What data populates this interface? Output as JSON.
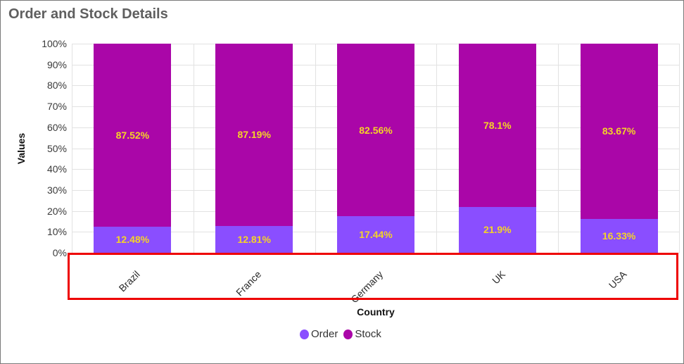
{
  "chart_data": {
    "type": "bar",
    "stacked": "100%",
    "title": "Order and Stock Details",
    "xlabel": "Country",
    "ylabel": "Values",
    "categories": [
      "Brazil",
      "France",
      "Germany",
      "UK",
      "USA"
    ],
    "series": [
      {
        "name": "Order",
        "color": "#8a4eff",
        "values": [
          12.48,
          12.81,
          17.44,
          21.9,
          16.33
        ],
        "labels": [
          "12.48%",
          "12.81%",
          "17.44%",
          "21.9%",
          "16.33%"
        ]
      },
      {
        "name": "Stock",
        "color": "#aa06a8",
        "values": [
          87.52,
          87.19,
          82.56,
          78.1,
          83.67
        ],
        "labels": [
          "87.52%",
          "87.19%",
          "82.56%",
          "78.1%",
          "83.67%"
        ]
      }
    ],
    "yticks": [
      "0%",
      "10%",
      "20%",
      "30%",
      "40%",
      "50%",
      "60%",
      "70%",
      "80%",
      "90%",
      "100%"
    ],
    "ylim": [
      0,
      100
    ],
    "grid": true,
    "legend_position": "bottom",
    "data_label_color": "#f5d327"
  },
  "annotation": {
    "highlight_color": "#ee0000",
    "target": "x-axis-category-labels"
  }
}
